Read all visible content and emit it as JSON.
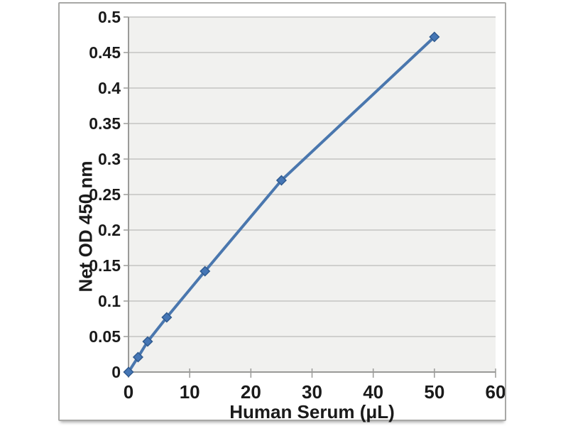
{
  "chart_data": {
    "type": "line",
    "title": "",
    "xlabel": "Human Serum (μL)",
    "ylabel": "Net OD 450 nm",
    "x": [
      0,
      1.56,
      3.13,
      6.25,
      12.5,
      25,
      50
    ],
    "y": [
      0,
      0.021,
      0.043,
      0.077,
      0.142,
      0.27,
      0.472
    ],
    "xlim": [
      0,
      60
    ],
    "ylim": [
      0,
      0.5
    ],
    "xticks": {
      "values": [
        0,
        10,
        20,
        30,
        40,
        50,
        60
      ],
      "labels": [
        "0",
        "10",
        "20",
        "30",
        "40",
        "50",
        "60"
      ]
    },
    "yticks": {
      "values": [
        0,
        0.05,
        0.1,
        0.15,
        0.2,
        0.25,
        0.3,
        0.35,
        0.4,
        0.45,
        0.5
      ],
      "labels": [
        "0",
        "0.05",
        "0.1",
        "0.15",
        "0.2",
        "0.25",
        "0.3",
        "0.35",
        "0.4",
        "0.45",
        "0.5"
      ]
    },
    "grid": "horizontal",
    "legend": "none",
    "marker": "diamond",
    "line_smooth": false,
    "colors": {
      "line": "#4a77ae",
      "marker_fill": "#4576b5",
      "marker_stroke": "#2f5a8f",
      "plot_background": "#f1f1ef",
      "gridline": "#c4c4c2",
      "axis": "#9a9a98",
      "text": "#1a1a1a",
      "frame_border": "#a8a8a6"
    }
  }
}
